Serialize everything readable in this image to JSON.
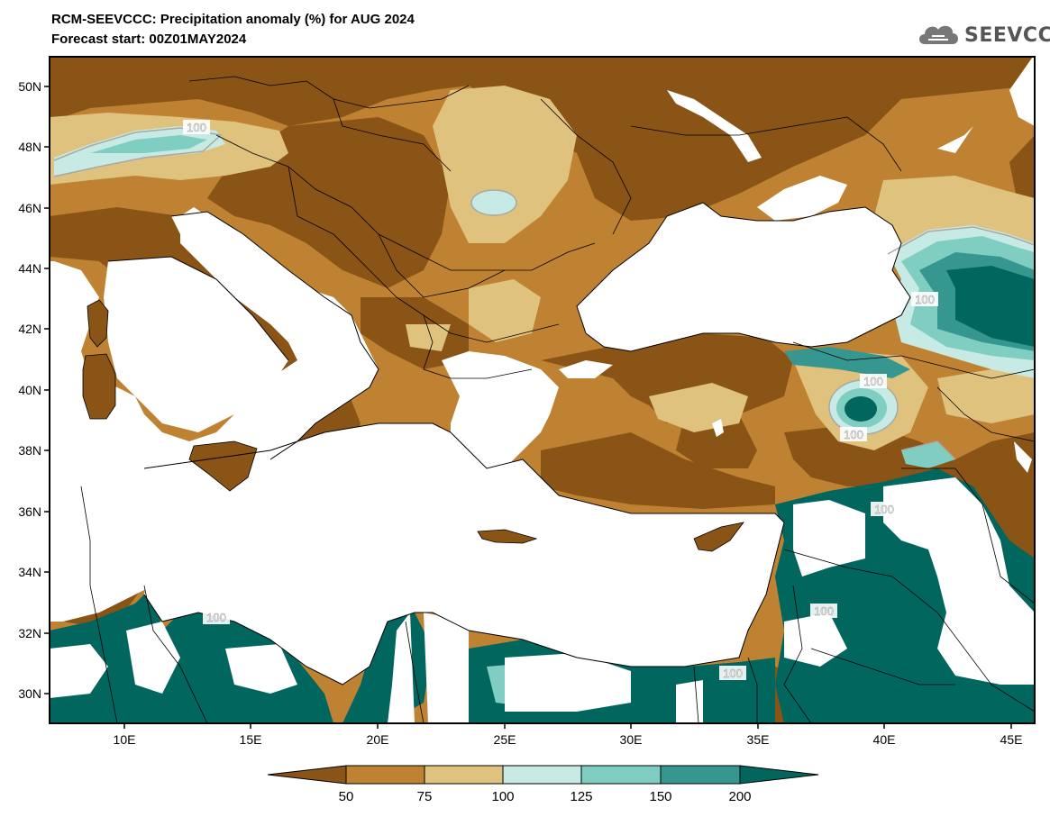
{
  "header": {
    "title_line1": "RCM-SEEVCCC: Precipitation anomaly (%) for AUG 2024",
    "title_line2": "Forecast start: 00Z01MAY2024",
    "logo_text": "SEEVCCC"
  },
  "map": {
    "variable": "Precipitation anomaly (%)",
    "lat_labels": [
      "50N",
      "48N",
      "46N",
      "44N",
      "42N",
      "40N",
      "38N",
      "36N",
      "34N",
      "32N",
      "30N"
    ],
    "lon_labels": [
      "10E",
      "15E",
      "20E",
      "25E",
      "30E",
      "35E",
      "40E",
      "45E"
    ],
    "contour_labels": [
      "100",
      "100",
      "100",
      "100",
      "100",
      "100",
      "100",
      "100"
    ],
    "colors": {
      "below_50": "#8a5416",
      "50_75": "#bf8232",
      "75_100": "#dfc27d",
      "100_125": "#c7eae5",
      "125_150": "#80cdc1",
      "150_200": "#35978f",
      "above_200": "#01665e",
      "sea": "#ffffff"
    }
  },
  "colorbar": {
    "labels": [
      "50",
      "75",
      "100",
      "125",
      "150",
      "200"
    ],
    "colors": [
      "#8a5416",
      "#bf8232",
      "#dfc27d",
      "#c7eae5",
      "#80cdc1",
      "#35978f",
      "#01665e"
    ]
  }
}
